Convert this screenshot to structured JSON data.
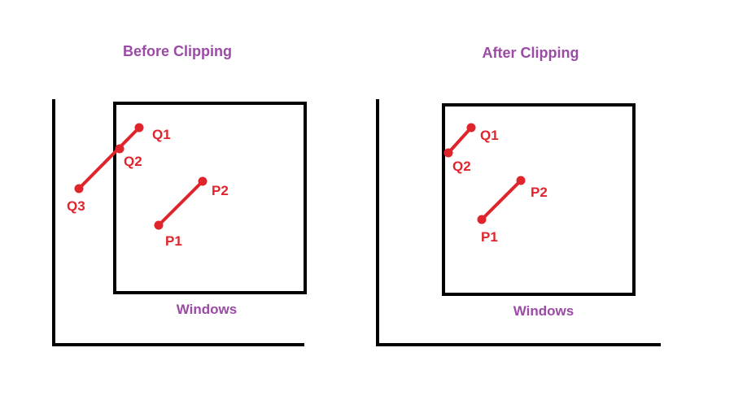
{
  "colors": {
    "title": "#9b4aa6",
    "line": "#e0242c",
    "frame": "#000000",
    "background": "#ffffff"
  },
  "panels": [
    {
      "title": "Before Clipping",
      "window_label": "Windows",
      "segments": [
        {
          "from": "Q3",
          "to": "Q1"
        },
        {
          "from": "P1",
          "to": "P2"
        }
      ],
      "points": [
        {
          "label": "Q1"
        },
        {
          "label": "Q2"
        },
        {
          "label": "Q3"
        },
        {
          "label": "P1"
        },
        {
          "label": "P2"
        }
      ]
    },
    {
      "title": "After Clipping",
      "window_label": "Windows",
      "segments": [
        {
          "from": "Q2",
          "to": "Q1"
        },
        {
          "from": "P1",
          "to": "P2"
        }
      ],
      "points": [
        {
          "label": "Q1"
        },
        {
          "label": "Q2"
        },
        {
          "label": "P1"
        },
        {
          "label": "P2"
        }
      ]
    }
  ]
}
